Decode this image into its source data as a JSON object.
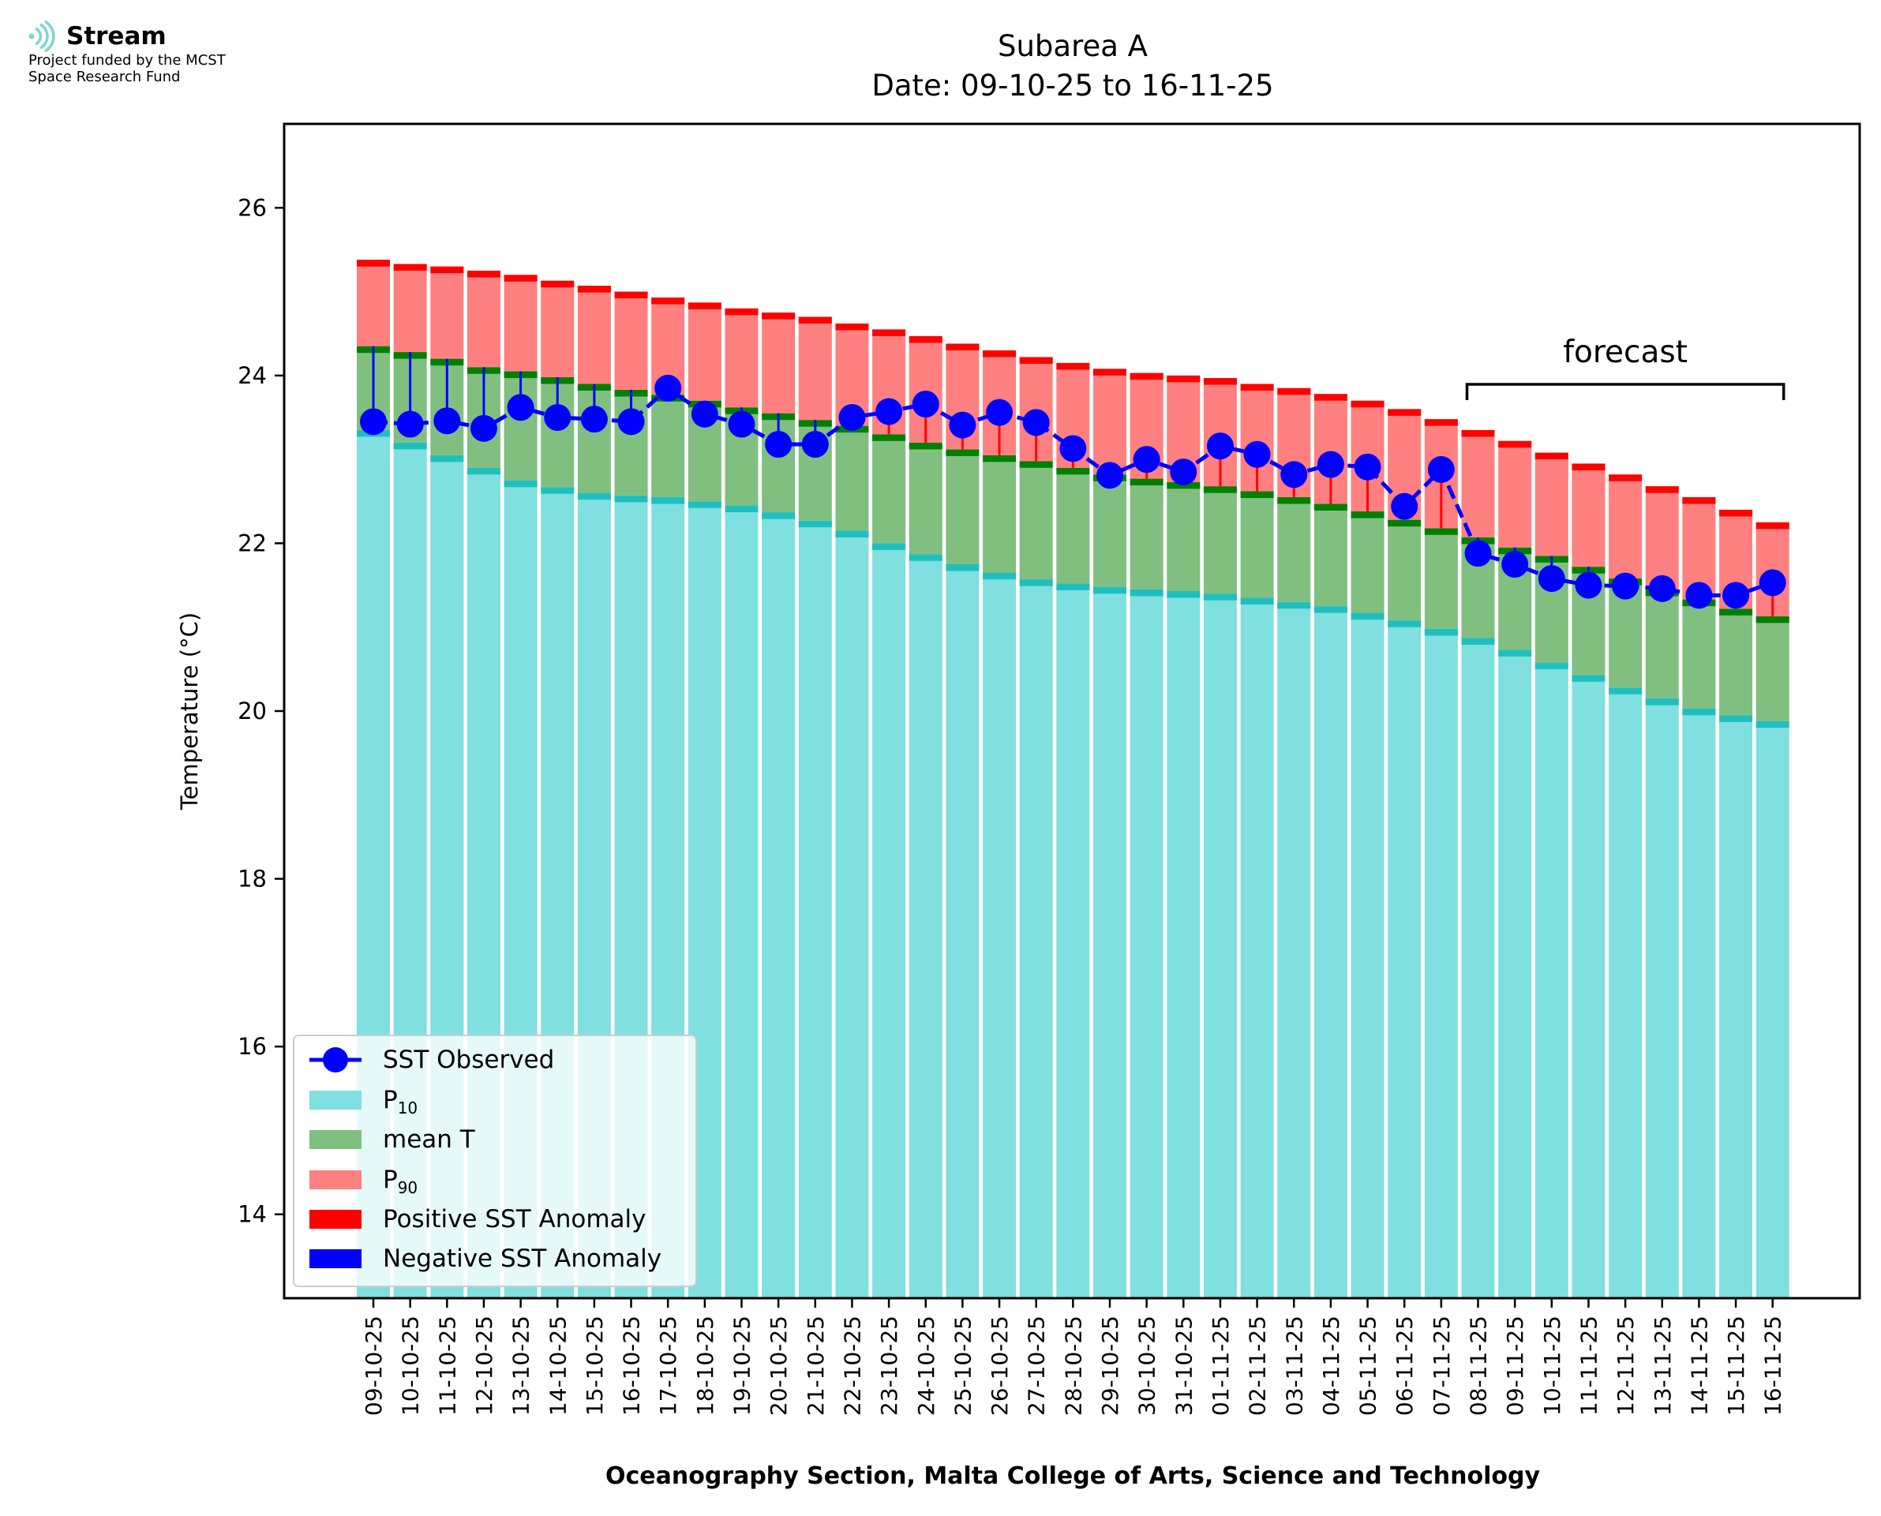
{
  "logo": {
    "name": "Stream",
    "line1": "Project funded by the MCST",
    "line2": "Space Research Fund"
  },
  "chart_data": {
    "type": "bar",
    "title": "Subarea A",
    "subtitle": "Date: 09-10-25 to 16-11-25",
    "xlabel": "Oceanography Section, Malta College of Arts, Science and Technology",
    "ylabel": "Temperature (°C)",
    "ylim": [
      13,
      27
    ],
    "yticks": [
      14,
      16,
      18,
      20,
      22,
      24,
      26
    ],
    "grid": false,
    "legend_position": "lower-left",
    "annotation": {
      "text": "forecast",
      "from": "08-11-25",
      "to": "16-11-25"
    },
    "colors": {
      "p10": "#80dfdf",
      "p10_edge": "#1fbfbf",
      "mean": "#80bf80",
      "mean_edge": "#008000",
      "p90": "#ff8080",
      "p90_edge": "#ff0000",
      "sst": "#0000ff",
      "pos_anomaly": "#ff0000",
      "neg_anomaly": "#0000ff"
    },
    "legend": [
      {
        "key": "sst",
        "label": "SST Observed"
      },
      {
        "key": "p10",
        "label": "P",
        "sub": "10"
      },
      {
        "key": "mean",
        "label": "mean T"
      },
      {
        "key": "p90",
        "label": "P",
        "sub": "90"
      },
      {
        "key": "pos",
        "label": "Positive SST Anomaly"
      },
      {
        "key": "neg",
        "label": "Negative SST Anomaly"
      }
    ],
    "categories": [
      "09-10-25",
      "10-10-25",
      "11-10-25",
      "12-10-25",
      "13-10-25",
      "14-10-25",
      "15-10-25",
      "16-10-25",
      "17-10-25",
      "18-10-25",
      "19-10-25",
      "20-10-25",
      "21-10-25",
      "22-10-25",
      "23-10-25",
      "24-10-25",
      "25-10-25",
      "26-10-25",
      "27-10-25",
      "28-10-25",
      "29-10-25",
      "30-10-25",
      "31-10-25",
      "01-11-25",
      "02-11-25",
      "03-11-25",
      "04-11-25",
      "05-11-25",
      "06-11-25",
      "07-11-25",
      "08-11-25",
      "09-11-25",
      "10-11-25",
      "11-11-25",
      "12-11-25",
      "13-11-25",
      "14-11-25",
      "15-11-25",
      "16-11-25"
    ],
    "series": [
      {
        "name": "P10",
        "values": [
          23.35,
          23.2,
          23.05,
          22.9,
          22.75,
          22.67,
          22.6,
          22.57,
          22.55,
          22.5,
          22.45,
          22.37,
          22.27,
          22.15,
          22.0,
          21.87,
          21.75,
          21.65,
          21.57,
          21.52,
          21.48,
          21.45,
          21.43,
          21.4,
          21.35,
          21.3,
          21.25,
          21.17,
          21.08,
          20.98,
          20.87,
          20.73,
          20.58,
          20.43,
          20.28,
          20.15,
          20.03,
          19.95,
          19.88
        ]
      },
      {
        "name": "mean T",
        "values": [
          24.35,
          24.28,
          24.2,
          24.1,
          24.05,
          23.98,
          23.9,
          23.83,
          23.77,
          23.7,
          23.62,
          23.55,
          23.47,
          23.4,
          23.3,
          23.2,
          23.12,
          23.05,
          22.98,
          22.9,
          22.82,
          22.77,
          22.73,
          22.68,
          22.62,
          22.55,
          22.47,
          22.38,
          22.28,
          22.18,
          22.07,
          21.95,
          21.85,
          21.72,
          21.58,
          21.45,
          21.33,
          21.22,
          21.13
        ]
      },
      {
        "name": "P90",
        "values": [
          25.38,
          25.33,
          25.3,
          25.25,
          25.2,
          25.13,
          25.07,
          25.0,
          24.93,
          24.87,
          24.8,
          24.75,
          24.7,
          24.62,
          24.55,
          24.47,
          24.38,
          24.3,
          24.22,
          24.15,
          24.08,
          24.03,
          24.0,
          23.97,
          23.9,
          23.85,
          23.78,
          23.7,
          23.6,
          23.48,
          23.35,
          23.22,
          23.08,
          22.95,
          22.82,
          22.68,
          22.55,
          22.4,
          22.25
        ]
      },
      {
        "name": "SST Observed",
        "values": [
          23.45,
          23.42,
          23.46,
          23.37,
          23.62,
          23.5,
          23.48,
          23.45,
          23.85,
          23.54,
          23.42,
          23.18,
          23.18,
          23.5,
          23.57,
          23.66,
          23.41,
          23.56,
          23.44,
          23.13,
          22.81,
          23.0,
          22.85,
          23.16,
          23.06,
          22.82,
          22.94,
          22.91,
          22.44,
          22.88,
          21.88,
          21.75,
          21.58,
          21.5,
          21.49,
          21.46,
          21.38,
          21.38,
          21.53
        ]
      }
    ]
  }
}
